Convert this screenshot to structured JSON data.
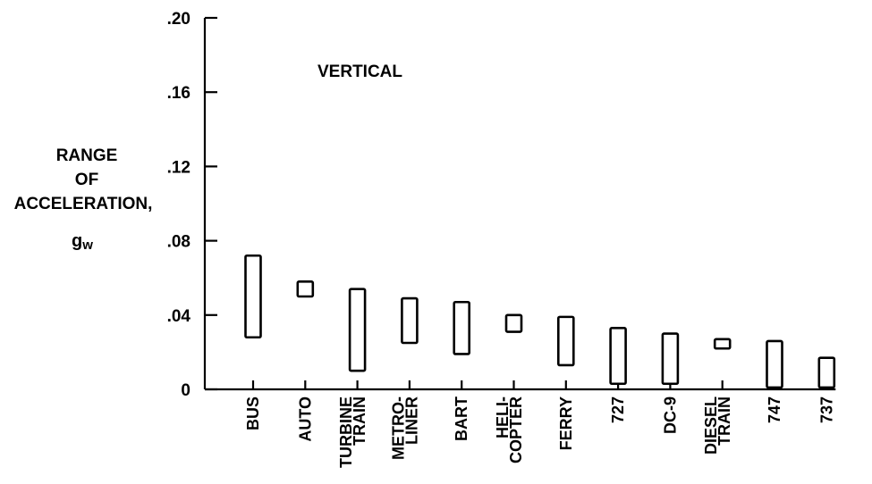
{
  "chart_data": {
    "type": "bar",
    "subtype": "floating-range",
    "annotation": "VERTICAL",
    "ylabel_lines": [
      "RANGE",
      "OF",
      "ACCELERATION,",
      "gᵥ"
    ],
    "ylabel_main": "RANGE\nOF\nACCELERATION,",
    "ylabel_unit": "g",
    "ylabel_unit_sub": "w",
    "ylim": [
      0,
      0.2
    ],
    "yticks": [
      0,
      0.04,
      0.08,
      0.12,
      0.16,
      0.2
    ],
    "ytick_labels": [
      "0",
      ".04",
      ".08",
      ".12",
      ".16",
      ".20"
    ],
    "grid": false,
    "categories": [
      {
        "lines": [
          "BUS"
        ],
        "low": 0.028,
        "high": 0.072
      },
      {
        "lines": [
          "AUTO"
        ],
        "low": 0.05,
        "high": 0.058
      },
      {
        "lines": [
          "TURBINE",
          "TRAIN"
        ],
        "low": 0.01,
        "high": 0.054
      },
      {
        "lines": [
          "METRO-",
          "LINER"
        ],
        "low": 0.025,
        "high": 0.049
      },
      {
        "lines": [
          "BART"
        ],
        "low": 0.019,
        "high": 0.047
      },
      {
        "lines": [
          "HELI-",
          "COPTER"
        ],
        "low": 0.031,
        "high": 0.04
      },
      {
        "lines": [
          "FERRY"
        ],
        "low": 0.013,
        "high": 0.039
      },
      {
        "lines": [
          "727"
        ],
        "low": 0.003,
        "high": 0.033
      },
      {
        "lines": [
          "DC-9"
        ],
        "low": 0.003,
        "high": 0.03
      },
      {
        "lines": [
          "DIESEL",
          "TRAIN"
        ],
        "low": 0.022,
        "high": 0.027
      },
      {
        "lines": [
          "747"
        ],
        "low": 0.001,
        "high": 0.026
      },
      {
        "lines": [
          "737"
        ],
        "low": 0.001,
        "high": 0.017
      }
    ]
  }
}
